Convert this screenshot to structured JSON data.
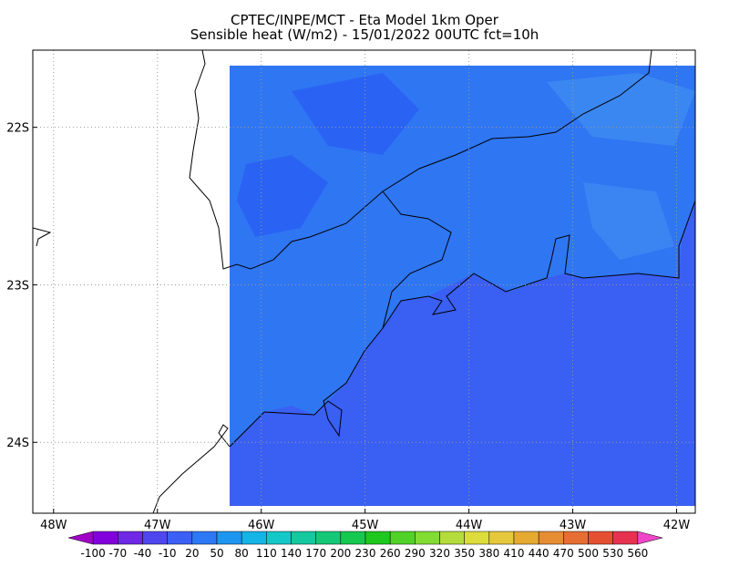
{
  "header": {
    "title": "CPTEC/INPE/MCT -  Eta Model 1km Oper",
    "subtitle": "Sensible heat (W/m2) - 15/01/2022 00UTC fct=10h"
  },
  "map": {
    "lon_range": [
      -48.2,
      -41.82
    ],
    "lat_range": [
      -24.45,
      -21.51
    ],
    "lon_ticks": [
      {
        "value": -48,
        "label": "48W"
      },
      {
        "value": -47,
        "label": "47W"
      },
      {
        "value": -46,
        "label": "46W"
      },
      {
        "value": -45,
        "label": "45W"
      },
      {
        "value": -44,
        "label": "44W"
      },
      {
        "value": -43,
        "label": "43W"
      },
      {
        "value": -42,
        "label": "42W"
      }
    ],
    "lat_ticks": [
      {
        "value": -22,
        "label": "22S"
      },
      {
        "value": -23,
        "label": "23S"
      },
      {
        "value": -24,
        "label": "24S"
      }
    ]
  },
  "colorbar": {
    "levels": [
      -100,
      -70,
      -40,
      -10,
      20,
      50,
      80,
      110,
      140,
      170,
      200,
      230,
      260,
      290,
      320,
      350,
      380,
      410,
      440,
      470,
      500,
      530,
      560
    ],
    "colors": [
      "#a000c8",
      "#8200dc",
      "#6e28e6",
      "#5046f0",
      "#3c5ff5",
      "#2d78f5",
      "#1e96f0",
      "#14b4e6",
      "#14c8c8",
      "#14c8a0",
      "#14c878",
      "#14c850",
      "#1ec81e",
      "#50d228",
      "#82dc32",
      "#b4dc3c",
      "#dcdc3c",
      "#e6c83c",
      "#e6aa32",
      "#e68c32",
      "#e66e32",
      "#e65032",
      "#e63250",
      "#f046c8"
    ]
  }
}
